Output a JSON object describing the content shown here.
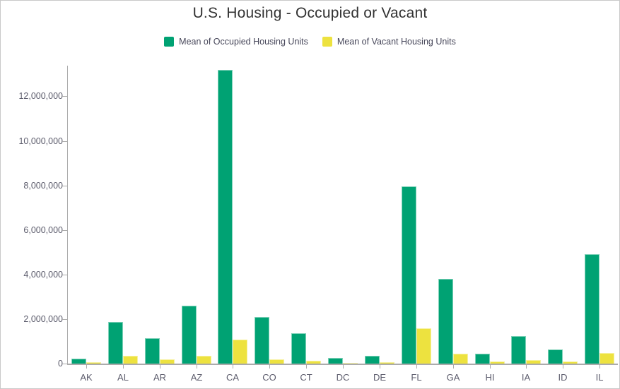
{
  "window": {
    "background": "#ffffff",
    "border_color": "#c9c9c9"
  },
  "chart": {
    "title": "U.S. Housing - Occupied or Vacant",
    "title_color": "#323232",
    "axis_color": "#ababab",
    "tick_label_color": "#5c5c6c",
    "legend_text_color": "#47475a",
    "legend": [
      {
        "label": "Mean of Occupied Housing Units",
        "color": "#00a273"
      },
      {
        "label": "Mean of Vacant Housing Units",
        "color": "#ede23f"
      }
    ]
  },
  "chart_data": {
    "type": "bar",
    "title": "U.S. Housing - Occupied or Vacant",
    "xlabel": "",
    "ylabel": "",
    "grid": false,
    "legend_position": "top",
    "categories": [
      "AK",
      "AL",
      "AR",
      "AZ",
      "CA",
      "CO",
      "CT",
      "DC",
      "DE",
      "FL",
      "GA",
      "HI",
      "IA",
      "ID",
      "IL"
    ],
    "series": [
      {
        "name": "Mean of Occupied Housing Units",
        "color": "#00a273",
        "values": [
          225000,
          1870000,
          1130000,
          2610000,
          13200000,
          2100000,
          1370000,
          250000,
          360000,
          7950000,
          3800000,
          440000,
          1230000,
          620000,
          4900000
        ]
      },
      {
        "name": "Mean of Vacant Housing Units",
        "color": "#ede23f",
        "values": [
          55000,
          360000,
          180000,
          360000,
          1080000,
          200000,
          130000,
          35000,
          60000,
          1590000,
          450000,
          85000,
          145000,
          80000,
          470000
        ]
      }
    ],
    "ylim": [
      0,
      13600000
    ],
    "y_ticks": {
      "values": [
        0,
        2000000,
        4000000,
        6000000,
        8000000,
        10000000,
        12000000
      ],
      "labels": [
        "0",
        "2,000,000",
        "4,000,000",
        "6,000,000",
        "8,000,000",
        "10,000,000",
        "12,000,000"
      ]
    }
  }
}
